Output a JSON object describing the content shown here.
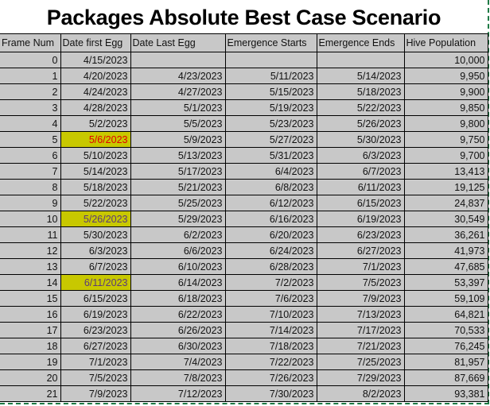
{
  "title": "Packages Absolute Best Case Scenario",
  "colors": {
    "cell_bg": "#c8c8c8",
    "highlight": "#c8c800",
    "red_text": "#e00000",
    "purple_text": "#5a3a7a",
    "selection_border": "#1f7a45"
  },
  "columns": [
    "Frame Num",
    "Date first Egg",
    "Date Last Egg",
    "Emergence Starts",
    "Emergence Ends",
    "Hive Population"
  ],
  "rows": [
    {
      "cells": [
        "0",
        "4/15/2023",
        "",
        "",
        "",
        "10,000"
      ]
    },
    {
      "cells": [
        "1",
        "4/20/2023",
        "4/23/2023",
        "5/11/2023",
        "5/14/2023",
        "9,950"
      ]
    },
    {
      "cells": [
        "2",
        "4/24/2023",
        "4/27/2023",
        "5/15/2023",
        "5/18/2023",
        "9,900"
      ]
    },
    {
      "cells": [
        "3",
        "4/28/2023",
        "5/1/2023",
        "5/19/2023",
        "5/22/2023",
        "9,850"
      ]
    },
    {
      "cells": [
        "4",
        "5/2/2023",
        "5/5/2023",
        "5/23/2023",
        "5/26/2023",
        "9,800"
      ]
    },
    {
      "cells": [
        "5",
        "5/6/2023",
        "5/9/2023",
        "5/27/2023",
        "5/30/2023",
        "9,750"
      ],
      "highlight": "red"
    },
    {
      "cells": [
        "6",
        "5/10/2023",
        "5/13/2023",
        "5/31/2023",
        "6/3/2023",
        "9,700"
      ]
    },
    {
      "cells": [
        "7",
        "5/14/2023",
        "5/17/2023",
        "6/4/2023",
        "6/7/2023",
        "13,413"
      ]
    },
    {
      "cells": [
        "8",
        "5/18/2023",
        "5/21/2023",
        "6/8/2023",
        "6/11/2023",
        "19,125"
      ]
    },
    {
      "cells": [
        "9",
        "5/22/2023",
        "5/25/2023",
        "6/12/2023",
        "6/15/2023",
        "24,837"
      ]
    },
    {
      "cells": [
        "10",
        "5/26/2023",
        "5/29/2023",
        "6/16/2023",
        "6/19/2023",
        "30,549"
      ],
      "highlight": "purple"
    },
    {
      "cells": [
        "11",
        "5/30/2023",
        "6/2/2023",
        "6/20/2023",
        "6/23/2023",
        "36,261"
      ]
    },
    {
      "cells": [
        "12",
        "6/3/2023",
        "6/6/2023",
        "6/24/2023",
        "6/27/2023",
        "41,973"
      ]
    },
    {
      "cells": [
        "13",
        "6/7/2023",
        "6/10/2023",
        "6/28/2023",
        "7/1/2023",
        "47,685"
      ]
    },
    {
      "cells": [
        "14",
        "6/11/2023",
        "6/14/2023",
        "7/2/2023",
        "7/5/2023",
        "53,397"
      ],
      "highlight": "purple"
    },
    {
      "cells": [
        "15",
        "6/15/2023",
        "6/18/2023",
        "7/6/2023",
        "7/9/2023",
        "59,109"
      ]
    },
    {
      "cells": [
        "16",
        "6/19/2023",
        "6/22/2023",
        "7/10/2023",
        "7/13/2023",
        "64,821"
      ]
    },
    {
      "cells": [
        "17",
        "6/23/2023",
        "6/26/2023",
        "7/14/2023",
        "7/17/2023",
        "70,533"
      ]
    },
    {
      "cells": [
        "18",
        "6/27/2023",
        "6/30/2023",
        "7/18/2023",
        "7/21/2023",
        "76,245"
      ]
    },
    {
      "cells": [
        "19",
        "7/1/2023",
        "7/4/2023",
        "7/22/2023",
        "7/25/2023",
        "81,957"
      ]
    },
    {
      "cells": [
        "20",
        "7/5/2023",
        "7/8/2023",
        "7/26/2023",
        "7/29/2023",
        "87,669"
      ]
    },
    {
      "cells": [
        "21",
        "7/9/2023",
        "7/12/2023",
        "7/30/2023",
        "8/2/2023",
        "93,381"
      ]
    }
  ]
}
